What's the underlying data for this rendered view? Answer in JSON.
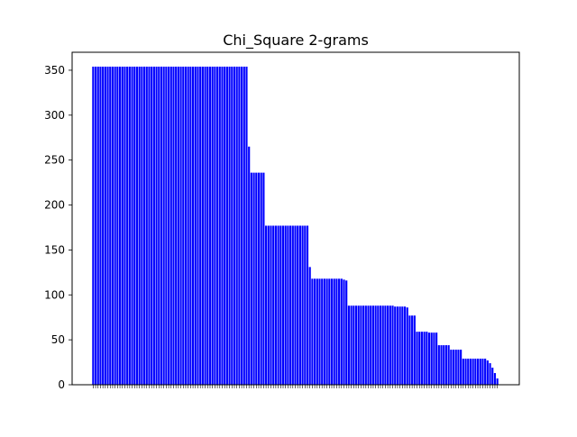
{
  "chart_data": {
    "type": "bar",
    "title": "Chi_Square 2-grams",
    "xlabel": "",
    "ylabel": "",
    "ylim": [
      0,
      370
    ],
    "yticks": [
      0,
      50,
      100,
      150,
      200,
      250,
      300,
      350
    ],
    "bar_color": "#0000ff",
    "grid": false,
    "values": [
      354,
      354,
      354,
      354,
      354,
      354,
      354,
      354,
      354,
      354,
      354,
      354,
      354,
      354,
      354,
      354,
      354,
      354,
      354,
      354,
      354,
      354,
      354,
      354,
      354,
      354,
      354,
      354,
      354,
      354,
      354,
      354,
      354,
      354,
      354,
      354,
      354,
      354,
      354,
      354,
      354,
      354,
      354,
      354,
      354,
      354,
      354,
      354,
      354,
      354,
      354,
      354,
      354,
      354,
      354,
      354,
      354,
      354,
      354,
      354,
      354,
      354,
      354,
      354,
      265,
      236,
      236,
      236,
      236,
      236,
      236,
      177,
      177,
      177,
      177,
      177,
      177,
      177,
      177,
      177,
      177,
      177,
      177,
      177,
      177,
      177,
      177,
      177,
      177,
      131,
      118,
      118,
      118,
      118,
      118,
      118,
      118,
      118,
      118,
      118,
      118,
      118,
      118,
      117,
      116,
      88,
      88,
      88,
      88,
      88,
      88,
      88,
      88,
      88,
      88,
      88,
      88,
      88,
      88,
      88,
      88,
      88,
      88,
      88,
      87,
      87,
      87,
      87,
      87,
      86,
      77,
      77,
      77,
      59,
      59,
      59,
      59,
      59,
      58,
      58,
      58,
      58,
      44,
      44,
      44,
      44,
      44,
      39,
      39,
      39,
      39,
      39,
      29,
      29,
      29,
      29,
      29,
      29,
      29,
      29,
      29,
      29,
      27,
      24,
      19,
      13,
      7
    ]
  }
}
